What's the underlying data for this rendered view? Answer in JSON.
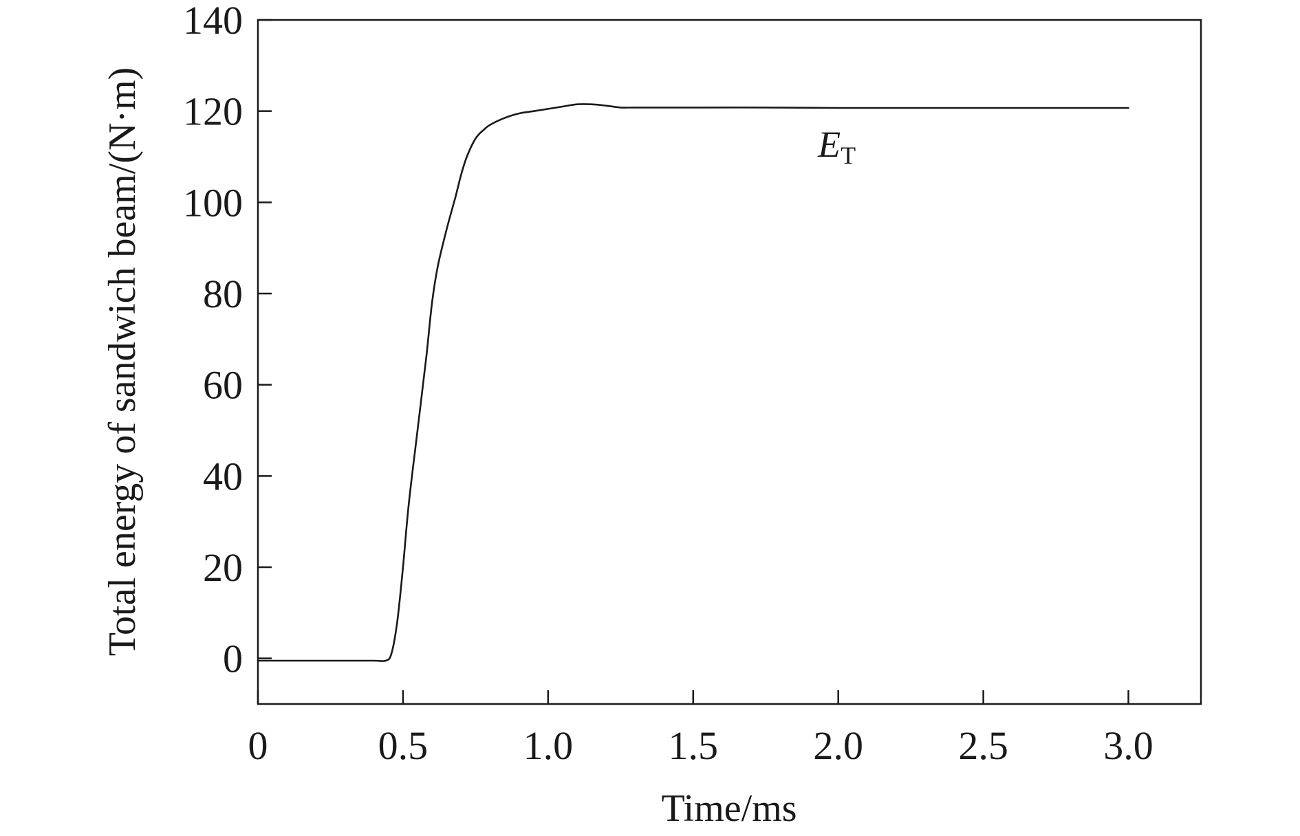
{
  "chart_data": {
    "type": "line",
    "xlabel": "Time/ms",
    "ylabel": "Total energy of sandwich beam/(N·m)",
    "xlim": [
      0,
      3.25
    ],
    "ylim": [
      -10,
      140
    ],
    "xticks": [
      "0",
      "0.5",
      "1.0",
      "1.5",
      "2.0",
      "2.5",
      "3.0"
    ],
    "xtick_values": [
      0,
      0.5,
      1.0,
      1.5,
      2.0,
      2.5,
      3.0
    ],
    "yticks": [
      "0",
      "20",
      "40",
      "60",
      "80",
      "100",
      "120",
      "140"
    ],
    "ytick_values": [
      0,
      20,
      40,
      60,
      80,
      100,
      120,
      140
    ],
    "grid": false,
    "colors": {
      "line": "#1a1a1a",
      "axes": "#1a1a1a"
    },
    "annotation": {
      "main": "E",
      "sub": "T",
      "x": 1.93,
      "y": 110
    },
    "series": [
      {
        "x": [
          0,
          0.1,
          0.2,
          0.3,
          0.4,
          0.44,
          0.46,
          0.48,
          0.5,
          0.52,
          0.55,
          0.58,
          0.6,
          0.62,
          0.65,
          0.68,
          0.7,
          0.72,
          0.75,
          0.78,
          0.8,
          0.85,
          0.9,
          0.95,
          1.0,
          1.05,
          1.1,
          1.15,
          1.2,
          1.25,
          1.3,
          1.4,
          1.5,
          1.75,
          2.0,
          2.25,
          2.5,
          2.75,
          3.0
        ],
        "y": [
          -0.5,
          -0.5,
          -0.5,
          -0.5,
          -0.5,
          -0.5,
          1,
          8,
          20,
          34,
          50,
          66,
          78,
          86,
          94,
          101,
          106,
          110,
          114,
          116,
          117,
          118.5,
          119.5,
          120,
          120.5,
          121,
          121.5,
          121.5,
          121.2,
          120.8,
          120.8,
          120.8,
          120.8,
          120.8,
          120.7,
          120.7,
          120.7,
          120.7,
          120.7
        ]
      }
    ]
  }
}
